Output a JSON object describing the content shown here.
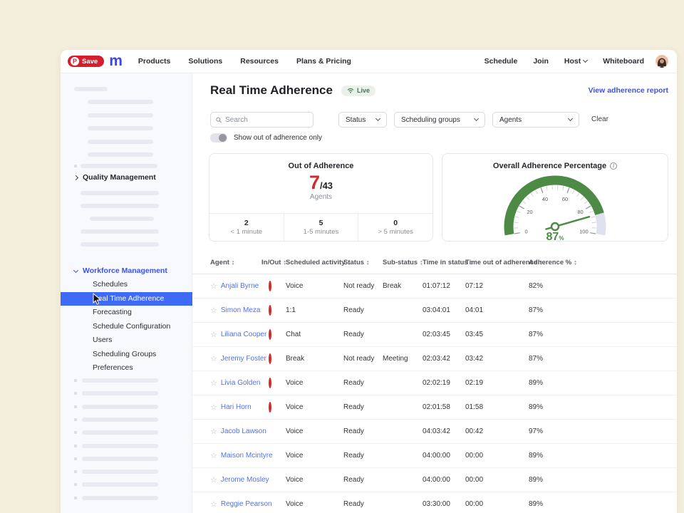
{
  "browser": {
    "pinterest_save": "Save",
    "logo_letter": "m"
  },
  "navbar": {
    "left": [
      "Products",
      "Solutions",
      "Resources",
      "Plans & Pricing"
    ],
    "right": [
      "Schedule",
      "Join",
      "Host",
      "Whiteboard"
    ]
  },
  "sidebar": {
    "section_quality": "Quality Management",
    "section_workforce": "Workforce Management",
    "workforce_items": [
      "Schedules",
      "Real Time Adherence",
      "Forecasting",
      "Schedule Configuration",
      "Users",
      "Scheduling Groups",
      "Preferences"
    ],
    "selected_item": "Real Time Adherence"
  },
  "page": {
    "title": "Real Time Adherence",
    "live": "Live",
    "report_link": "View adherence report"
  },
  "filters": {
    "search_placeholder": "Search",
    "selects": [
      "Status",
      "Scheduling groups",
      "Agents"
    ],
    "clear": "Clear",
    "toggle_label": "Show out of adherence only"
  },
  "cards": {
    "out_of_adherence": {
      "title": "Out of Adherence",
      "count": "7",
      "total": "/43",
      "unit": "Agents",
      "breakdown": [
        {
          "value": "2",
          "label": "< 1 minute"
        },
        {
          "value": "5",
          "label": "1-5 minutes"
        },
        {
          "value": "0",
          "label": "> 5 minutes"
        }
      ]
    },
    "gauge": {
      "title": "Overall Adherence Percentage",
      "value": 87,
      "display": "87",
      "unit": "%",
      "min": 0,
      "max": 100,
      "ticks": [
        0,
        20,
        40,
        60,
        80,
        100
      ]
    }
  },
  "table": {
    "columns": [
      "Agent",
      "In/Out",
      "Scheduled activity",
      "Status",
      "Sub-status",
      "Time in status",
      "Time out of adherence",
      "Adherence %"
    ],
    "rows": [
      {
        "agent": "Anjali Byrne",
        "inout": "out",
        "activity": "Voice",
        "status": "Not ready",
        "sub_status": "Break",
        "time_in_status": "01:07:12",
        "time_out": "07:12",
        "adherence": "82%"
      },
      {
        "agent": "Simon Meza",
        "inout": "out",
        "activity": "1:1",
        "status": "Ready",
        "sub_status": "",
        "time_in_status": "03:04:01",
        "time_out": "04:01",
        "adherence": "87%"
      },
      {
        "agent": "Liliana Cooper",
        "inout": "out",
        "activity": "Chat",
        "status": "Ready",
        "sub_status": "",
        "time_in_status": "02:03:45",
        "time_out": "03:45",
        "adherence": "87%"
      },
      {
        "agent": "Jeremy Foster",
        "inout": "out",
        "activity": "Break",
        "status": "Not ready",
        "sub_status": "Meeting",
        "time_in_status": "02:03:42",
        "time_out": "03:42",
        "adherence": "87%"
      },
      {
        "agent": "Livia Golden",
        "inout": "out",
        "activity": "Voice",
        "status": "Ready",
        "sub_status": "",
        "time_in_status": "02:02:19",
        "time_out": "02:19",
        "adherence": "89%"
      },
      {
        "agent": "Hari Horn",
        "inout": "out",
        "activity": "Voice",
        "status": "Ready",
        "sub_status": "",
        "time_in_status": "02:01:58",
        "time_out": "01:58",
        "adherence": "89%"
      },
      {
        "agent": "Jacob Lawson",
        "inout": "in",
        "activity": "Voice",
        "status": "Ready",
        "sub_status": "",
        "time_in_status": "04:03:42",
        "time_out": "00:42",
        "adherence": "97%"
      },
      {
        "agent": "Maison Mcintyre",
        "inout": "in",
        "activity": "Voice",
        "status": "Ready",
        "sub_status": "",
        "time_in_status": "04:00:00",
        "time_out": "00:00",
        "adherence": "89%"
      },
      {
        "agent": "Jerome Mosley",
        "inout": "in",
        "activity": "Voice",
        "status": "Ready",
        "sub_status": "",
        "time_in_status": "04:00:00",
        "time_out": "00:00",
        "adherence": "89%"
      },
      {
        "agent": "Reggie Pearson",
        "inout": "in",
        "activity": "Voice",
        "status": "Ready",
        "sub_status": "",
        "time_in_status": "03:30:00",
        "time_out": "00:00",
        "adherence": "89%"
      }
    ]
  },
  "colors": {
    "brand_blue": "#3c45e8",
    "selected_blue": "#3f6af5",
    "link_blue": "#4d72f0",
    "alert_red": "#d02c2c",
    "ok_green": "#2e9e44",
    "gauge_green": "#4c8a45",
    "gauge_rest": "#dfe2ee",
    "pinterest_red": "#d4202c",
    "live_green": "#437a4e"
  }
}
